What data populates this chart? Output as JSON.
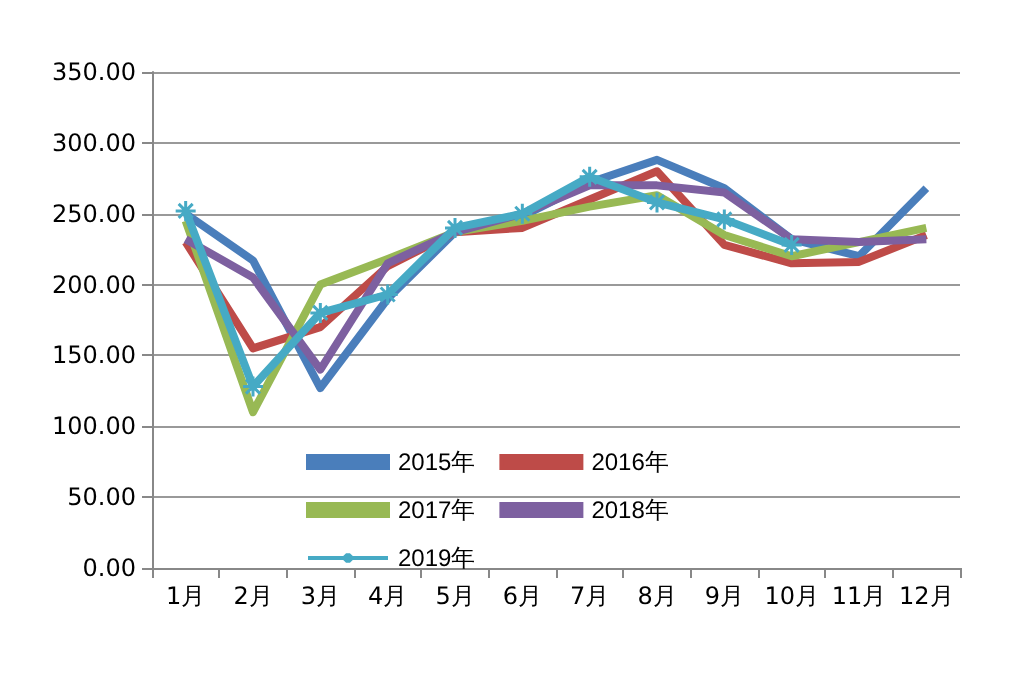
{
  "chart_data": {
    "type": "line",
    "categories": [
      "1月",
      "2月",
      "3月",
      "4月",
      "5月",
      "6月",
      "7月",
      "8月",
      "9月",
      "10月",
      "11月",
      "12月"
    ],
    "series": [
      {
        "name": "2015年",
        "color": "#4a7ebb",
        "marker": "none",
        "values": [
          250,
          217,
          127,
          190,
          237,
          248,
          272,
          288,
          268,
          232,
          220,
          268
        ]
      },
      {
        "name": "2016年",
        "color": "#be4b48",
        "marker": "none",
        "values": [
          230,
          155,
          170,
          213,
          237,
          240,
          260,
          280,
          228,
          215,
          216,
          235
        ]
      },
      {
        "name": "2017年",
        "color": "#98b954",
        "marker": "none",
        "values": [
          245,
          110,
          200,
          218,
          237,
          245,
          255,
          263,
          235,
          220,
          230,
          240
        ]
      },
      {
        "name": "2018年",
        "color": "#7d60a0",
        "marker": "none",
        "values": [
          232,
          205,
          140,
          215,
          237,
          250,
          270,
          270,
          265,
          232,
          230,
          232
        ]
      },
      {
        "name": "2019年",
        "color": "#46aac5",
        "marker": "cross",
        "values": [
          252,
          128,
          180,
          193,
          240,
          250,
          276,
          258,
          246,
          228,
          null,
          null
        ]
      }
    ],
    "ylim": [
      0,
      350
    ],
    "yticks": [
      {
        "value": 0,
        "label": "0.00"
      },
      {
        "value": 50,
        "label": "50.00"
      },
      {
        "value": 100,
        "label": "100.00"
      },
      {
        "value": 150,
        "label": "150.00"
      },
      {
        "value": 200,
        "label": "200.00"
      },
      {
        "value": 250,
        "label": "250.00"
      },
      {
        "value": 300,
        "label": "300.00"
      },
      {
        "value": 350,
        "label": "350.00"
      }
    ],
    "grid": "y",
    "legend": "bottom"
  }
}
